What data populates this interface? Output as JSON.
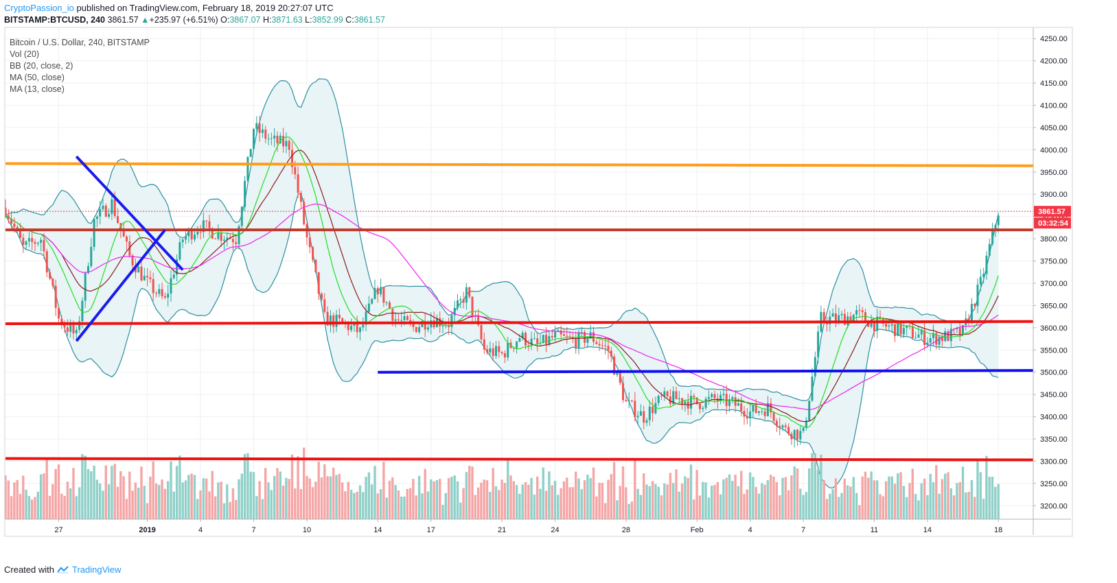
{
  "header": {
    "author": "CryptoPassion_io",
    "published_text": "published on TradingView.com, February 18, 2019 20:27:07 UTC",
    "symbol": "BITSTAMP:BTCUSD, 240",
    "last": "3861.57",
    "change_arrow": "▲",
    "change": "+235.97 (+6.51%)",
    "open_label": "O:",
    "open": "3867.07",
    "high_label": "H:",
    "high": "3871.63",
    "low_label": "L:",
    "low": "3852.99",
    "close_label": "C:",
    "close": "3861.57"
  },
  "legend": {
    "title": "Bitcoin / U.S. Dollar, 240, BITSTAMP",
    "items": [
      "Vol (20)",
      "BB (20, close, 2)",
      "MA (50, close)",
      "MA (13, close)"
    ]
  },
  "footer": {
    "created_with": "Created with",
    "brand": "TradingView"
  },
  "colors": {
    "up": "#26a69a",
    "down": "#ef5350",
    "price_red": "#f23645",
    "ma13": "#22dd22",
    "ma50": "#ee22ee",
    "bb_mid": "#8b1a1a",
    "bb_band": "#2a8fa0",
    "bb_fill": "#e8f4f6",
    "resistance_orange": "#ff9c1a",
    "support_brown": "#c0392b",
    "level_red": "#ee1111",
    "level_blue": "#1010ee",
    "trend_blue": "#1a1aee",
    "vol_up": "#8fd0c8",
    "vol_down": "#f5a5a5"
  },
  "chart_data": {
    "type": "candlestick",
    "interval": "240",
    "price_axis": {
      "ticks": [
        3200,
        3250,
        3300,
        3350,
        3400,
        3450,
        3500,
        3550,
        3600,
        3650,
        3700,
        3750,
        3800,
        3850,
        3900,
        3950,
        4000,
        4050,
        4100,
        4150,
        4200,
        4250
      ],
      "tick_labels": [
        "3200.00",
        "3250.00",
        "3300.00",
        "3350.00",
        "3400.00",
        "3450.00",
        "3500.00",
        "3550.00",
        "3600.00",
        "3650.00",
        "3700.00",
        "3750.00",
        "3800.00",
        "3850.00",
        "3900.00",
        "3950.00",
        "4000.00",
        "4050.00",
        "4100.00",
        "4150.00",
        "4200.00",
        "4250.00"
      ],
      "ylim": [
        3165,
        4275
      ]
    },
    "time_axis": {
      "labels": [
        "27",
        "2019",
        "4",
        "7",
        "10",
        "14",
        "17",
        "21",
        "24",
        "28",
        "Feb",
        "4",
        "7",
        "11",
        "14",
        "18"
      ],
      "ticks": [
        "2018-12-27",
        "2019-01-01",
        "2019-01-04",
        "2019-01-07",
        "2019-01-10",
        "2019-01-14",
        "2019-01-17",
        "2019-01-21",
        "2019-01-24",
        "2019-01-28",
        "2019-02-01",
        "2019-02-04",
        "2019-02-07",
        "2019-02-11",
        "2019-02-14",
        "2019-02-18"
      ]
    },
    "last_price": {
      "label": "3861.57",
      "countdown": "03:32:54",
      "value": 3861.57
    },
    "price_path": [
      [
        "2018-12-24",
        3870
      ],
      [
        "2018-12-25",
        3780
      ],
      [
        "2018-12-26",
        3800
      ],
      [
        "2018-12-27",
        3620
      ],
      [
        "2018-12-28",
        3580
      ],
      [
        "2018-12-29",
        3840
      ],
      [
        "2018-12-30",
        3880
      ],
      [
        "2018-12-31",
        3760
      ],
      [
        "2019-01-01",
        3700
      ],
      [
        "2019-01-02",
        3660
      ],
      [
        "2019-01-03",
        3800
      ],
      [
        "2019-01-04",
        3830
      ],
      [
        "2019-01-05",
        3810
      ],
      [
        "2019-01-06",
        3800
      ],
      [
        "2019-01-07",
        4050
      ],
      [
        "2019-01-08",
        4020
      ],
      [
        "2019-01-09",
        4010
      ],
      [
        "2019-01-10",
        3800
      ],
      [
        "2019-01-11",
        3620
      ],
      [
        "2019-01-12",
        3610
      ],
      [
        "2019-01-13",
        3590
      ],
      [
        "2019-01-14",
        3690
      ],
      [
        "2019-01-15",
        3620
      ],
      [
        "2019-01-16",
        3600
      ],
      [
        "2019-01-17",
        3620
      ],
      [
        "2019-01-18",
        3610
      ],
      [
        "2019-01-19",
        3680
      ],
      [
        "2019-01-20",
        3550
      ],
      [
        "2019-01-21",
        3540
      ],
      [
        "2019-01-22",
        3580
      ],
      [
        "2019-01-23",
        3560
      ],
      [
        "2019-01-24",
        3580
      ],
      [
        "2019-01-25",
        3570
      ],
      [
        "2019-01-26",
        3580
      ],
      [
        "2019-01-27",
        3550
      ],
      [
        "2019-01-28",
        3430
      ],
      [
        "2019-01-29",
        3400
      ],
      [
        "2019-01-30",
        3440
      ],
      [
        "2019-01-31",
        3440
      ],
      [
        "2019-02-01",
        3430
      ],
      [
        "2019-02-02",
        3440
      ],
      [
        "2019-02-03",
        3430
      ],
      [
        "2019-02-04",
        3410
      ],
      [
        "2019-02-05",
        3420
      ],
      [
        "2019-02-06",
        3370
      ],
      [
        "2019-02-07",
        3360
      ],
      [
        "2019-02-08",
        3620
      ],
      [
        "2019-02-09",
        3620
      ],
      [
        "2019-02-10",
        3630
      ],
      [
        "2019-02-11",
        3610
      ],
      [
        "2019-02-12",
        3600
      ],
      [
        "2019-02-13",
        3590
      ],
      [
        "2019-02-14",
        3575
      ],
      [
        "2019-02-15",
        3580
      ],
      [
        "2019-02-16",
        3590
      ],
      [
        "2019-02-17",
        3700
      ],
      [
        "2019-02-18",
        3862
      ]
    ],
    "horizontal_levels": [
      {
        "y_start": 3969,
        "y_end": 3964,
        "color": "#ff9c1a"
      },
      {
        "y_start": 3820,
        "y_end": 3820,
        "color": "#c0392b"
      },
      {
        "y_start": 3609,
        "y_end": 3614,
        "color": "#ee1111"
      },
      {
        "y_start": 3500,
        "y_end": 3504,
        "x_start": "2019-01-14",
        "color": "#1010ee"
      },
      {
        "y_start": 3306,
        "y_end": 3303,
        "color": "#ee1111"
      }
    ],
    "trend_lines": [
      {
        "from": [
          "2018-12-28",
          3985
        ],
        "to": [
          "2019-01-03",
          3730
        ]
      },
      {
        "from": [
          "2018-12-28",
          3570
        ],
        "to": [
          "2019-01-02",
          3820
        ]
      }
    ]
  }
}
